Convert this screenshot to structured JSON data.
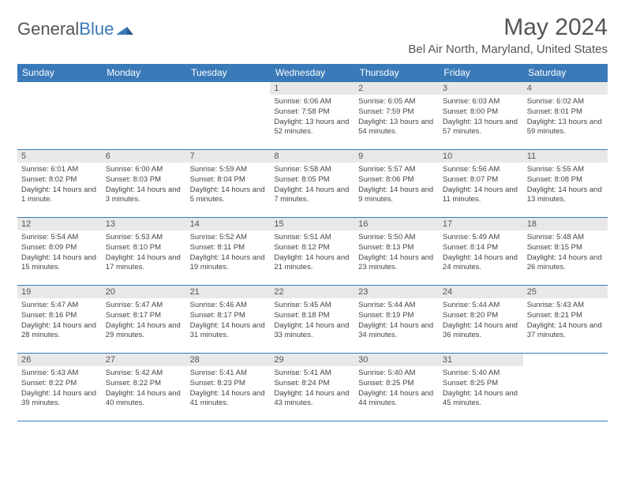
{
  "logo": {
    "text1": "General",
    "text2": "Blue"
  },
  "title": "May 2024",
  "location": "Bel Air North, Maryland, United States",
  "colors": {
    "accent": "#3a7ab8",
    "dayhead": "#e8e8e8",
    "text": "#555"
  },
  "daynames": [
    "Sunday",
    "Monday",
    "Tuesday",
    "Wednesday",
    "Thursday",
    "Friday",
    "Saturday"
  ],
  "weeks": [
    [
      null,
      null,
      null,
      {
        "n": "1",
        "sr": "6:06 AM",
        "ss": "7:58 PM",
        "dl": "13 hours and 52 minutes."
      },
      {
        "n": "2",
        "sr": "6:05 AM",
        "ss": "7:59 PM",
        "dl": "13 hours and 54 minutes."
      },
      {
        "n": "3",
        "sr": "6:03 AM",
        "ss": "8:00 PM",
        "dl": "13 hours and 57 minutes."
      },
      {
        "n": "4",
        "sr": "6:02 AM",
        "ss": "8:01 PM",
        "dl": "13 hours and 59 minutes."
      }
    ],
    [
      {
        "n": "5",
        "sr": "6:01 AM",
        "ss": "8:02 PM",
        "dl": "14 hours and 1 minute."
      },
      {
        "n": "6",
        "sr": "6:00 AM",
        "ss": "8:03 PM",
        "dl": "14 hours and 3 minutes."
      },
      {
        "n": "7",
        "sr": "5:59 AM",
        "ss": "8:04 PM",
        "dl": "14 hours and 5 minutes."
      },
      {
        "n": "8",
        "sr": "5:58 AM",
        "ss": "8:05 PM",
        "dl": "14 hours and 7 minutes."
      },
      {
        "n": "9",
        "sr": "5:57 AM",
        "ss": "8:06 PM",
        "dl": "14 hours and 9 minutes."
      },
      {
        "n": "10",
        "sr": "5:56 AM",
        "ss": "8:07 PM",
        "dl": "14 hours and 11 minutes."
      },
      {
        "n": "11",
        "sr": "5:55 AM",
        "ss": "8:08 PM",
        "dl": "14 hours and 13 minutes."
      }
    ],
    [
      {
        "n": "12",
        "sr": "5:54 AM",
        "ss": "8:09 PM",
        "dl": "14 hours and 15 minutes."
      },
      {
        "n": "13",
        "sr": "5:53 AM",
        "ss": "8:10 PM",
        "dl": "14 hours and 17 minutes."
      },
      {
        "n": "14",
        "sr": "5:52 AM",
        "ss": "8:11 PM",
        "dl": "14 hours and 19 minutes."
      },
      {
        "n": "15",
        "sr": "5:51 AM",
        "ss": "8:12 PM",
        "dl": "14 hours and 21 minutes."
      },
      {
        "n": "16",
        "sr": "5:50 AM",
        "ss": "8:13 PM",
        "dl": "14 hours and 23 minutes."
      },
      {
        "n": "17",
        "sr": "5:49 AM",
        "ss": "8:14 PM",
        "dl": "14 hours and 24 minutes."
      },
      {
        "n": "18",
        "sr": "5:48 AM",
        "ss": "8:15 PM",
        "dl": "14 hours and 26 minutes."
      }
    ],
    [
      {
        "n": "19",
        "sr": "5:47 AM",
        "ss": "8:16 PM",
        "dl": "14 hours and 28 minutes."
      },
      {
        "n": "20",
        "sr": "5:47 AM",
        "ss": "8:17 PM",
        "dl": "14 hours and 29 minutes."
      },
      {
        "n": "21",
        "sr": "5:46 AM",
        "ss": "8:17 PM",
        "dl": "14 hours and 31 minutes."
      },
      {
        "n": "22",
        "sr": "5:45 AM",
        "ss": "8:18 PM",
        "dl": "14 hours and 33 minutes."
      },
      {
        "n": "23",
        "sr": "5:44 AM",
        "ss": "8:19 PM",
        "dl": "14 hours and 34 minutes."
      },
      {
        "n": "24",
        "sr": "5:44 AM",
        "ss": "8:20 PM",
        "dl": "14 hours and 36 minutes."
      },
      {
        "n": "25",
        "sr": "5:43 AM",
        "ss": "8:21 PM",
        "dl": "14 hours and 37 minutes."
      }
    ],
    [
      {
        "n": "26",
        "sr": "5:43 AM",
        "ss": "8:22 PM",
        "dl": "14 hours and 39 minutes."
      },
      {
        "n": "27",
        "sr": "5:42 AM",
        "ss": "8:22 PM",
        "dl": "14 hours and 40 minutes."
      },
      {
        "n": "28",
        "sr": "5:41 AM",
        "ss": "8:23 PM",
        "dl": "14 hours and 41 minutes."
      },
      {
        "n": "29",
        "sr": "5:41 AM",
        "ss": "8:24 PM",
        "dl": "14 hours and 43 minutes."
      },
      {
        "n": "30",
        "sr": "5:40 AM",
        "ss": "8:25 PM",
        "dl": "14 hours and 44 minutes."
      },
      {
        "n": "31",
        "sr": "5:40 AM",
        "ss": "8:25 PM",
        "dl": "14 hours and 45 minutes."
      },
      null
    ]
  ],
  "labels": {
    "sunrise": "Sunrise:",
    "sunset": "Sunset:",
    "daylight": "Daylight:"
  }
}
